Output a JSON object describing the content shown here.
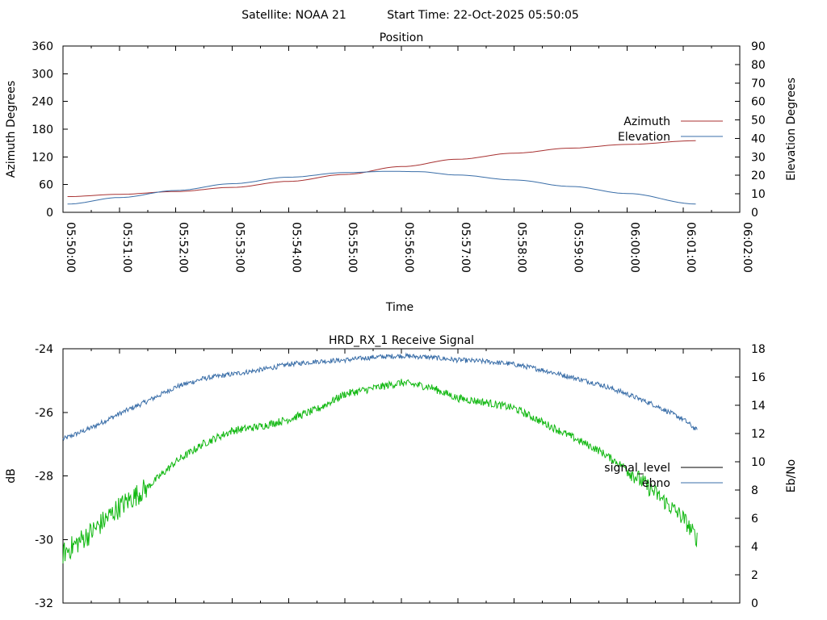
{
  "header": {
    "satellite": "Satellite: NOAA 21",
    "start_time": "Start Time: 22-Oct-2025 05:50:05"
  },
  "chart_data": [
    {
      "type": "line",
      "title": "Position",
      "xlabel": "Time",
      "ylabel": "Azimuth Degrees",
      "y2label": "Elevation Degrees",
      "x_ticks": [
        "05:50:00",
        "05:51:00",
        "05:52:00",
        "05:53:00",
        "05:54:00",
        "05:55:00",
        "05:56:00",
        "05:57:00",
        "05:58:00",
        "05:59:00",
        "06:00:00",
        "06:01:00",
        "06:02:00"
      ],
      "xlim_min": [
        0,
        12
      ],
      "ylim": [
        0,
        360
      ],
      "y_ticks": [
        0,
        60,
        120,
        180,
        240,
        300,
        360
      ],
      "y2lim": [
        0,
        90
      ],
      "y2_ticks": [
        0,
        10,
        20,
        30,
        40,
        50,
        60,
        70,
        80,
        90
      ],
      "legend_position": "right",
      "series": [
        {
          "name": "Azimuth",
          "axis": "y",
          "color": "#a83232",
          "x": [
            0.08,
            1,
            2,
            3,
            4,
            5,
            6,
            7,
            8,
            9,
            10,
            11.22
          ],
          "y": [
            34,
            39,
            45,
            54,
            67,
            82,
            99,
            115,
            128,
            139,
            147,
            155
          ]
        },
        {
          "name": "Elevation",
          "axis": "y2",
          "color": "#3a6ea8",
          "x": [
            0.08,
            1,
            2,
            3,
            4,
            5,
            5.8,
            6.3,
            7,
            8,
            9,
            10,
            11.22
          ],
          "y": [
            4.5,
            8,
            11.8,
            15.5,
            19,
            21.5,
            22.2,
            22,
            20.2,
            17.5,
            14,
            10.2,
            4.5
          ]
        }
      ]
    },
    {
      "type": "line",
      "title": "HRD_RX_1 Receive Signal",
      "ylabel": "dB",
      "y2label": "Eb/No",
      "xlim_min": [
        0,
        12
      ],
      "ylim": [
        -32,
        -24
      ],
      "y_ticks": [
        -32,
        -30,
        -28,
        -26,
        -24
      ],
      "y2lim": [
        0,
        18
      ],
      "y2_ticks": [
        0,
        2,
        4,
        6,
        8,
        10,
        12,
        14,
        16,
        18
      ],
      "legend_position": "right",
      "series": [
        {
          "name": "signal_level",
          "axis": "y",
          "color": "#000000",
          "x": [],
          "y": []
        },
        {
          "name": "ebno",
          "axis": "y2",
          "color": "#3a6ea8",
          "x": [
            0.0,
            0.5,
            1.0,
            1.5,
            2.0,
            2.5,
            3.0,
            3.5,
            4.0,
            4.5,
            5.0,
            5.5,
            6.0,
            6.5,
            7.0,
            7.5,
            8.0,
            8.5,
            9.0,
            9.5,
            10.0,
            10.5,
            11.0,
            11.25
          ],
          "y": [
            11.6,
            12.4,
            13.4,
            14.3,
            15.3,
            15.9,
            16.2,
            16.5,
            16.9,
            17.1,
            17.2,
            17.4,
            17.5,
            17.4,
            17.2,
            17.1,
            16.9,
            16.5,
            16.0,
            15.5,
            14.8,
            14.0,
            13.0,
            12.2
          ]
        },
        {
          "name": "",
          "axis": "y2",
          "color": "#11b811",
          "x": [
            0.0,
            0.5,
            1.0,
            1.5,
            2.0,
            2.5,
            3.0,
            3.5,
            4.0,
            4.5,
            5.0,
            5.5,
            6.0,
            6.5,
            7.0,
            7.5,
            8.0,
            8.5,
            9.0,
            9.5,
            10.0,
            10.5,
            11.0,
            11.25
          ],
          "y": [
            3.5,
            5.0,
            6.8,
            8.2,
            10.0,
            11.3,
            12.2,
            12.5,
            13.0,
            13.7,
            14.8,
            15.2,
            15.6,
            15.3,
            14.5,
            14.2,
            13.8,
            12.8,
            11.8,
            10.8,
            9.5,
            7.8,
            6.0,
            4.5
          ]
        }
      ]
    }
  ]
}
